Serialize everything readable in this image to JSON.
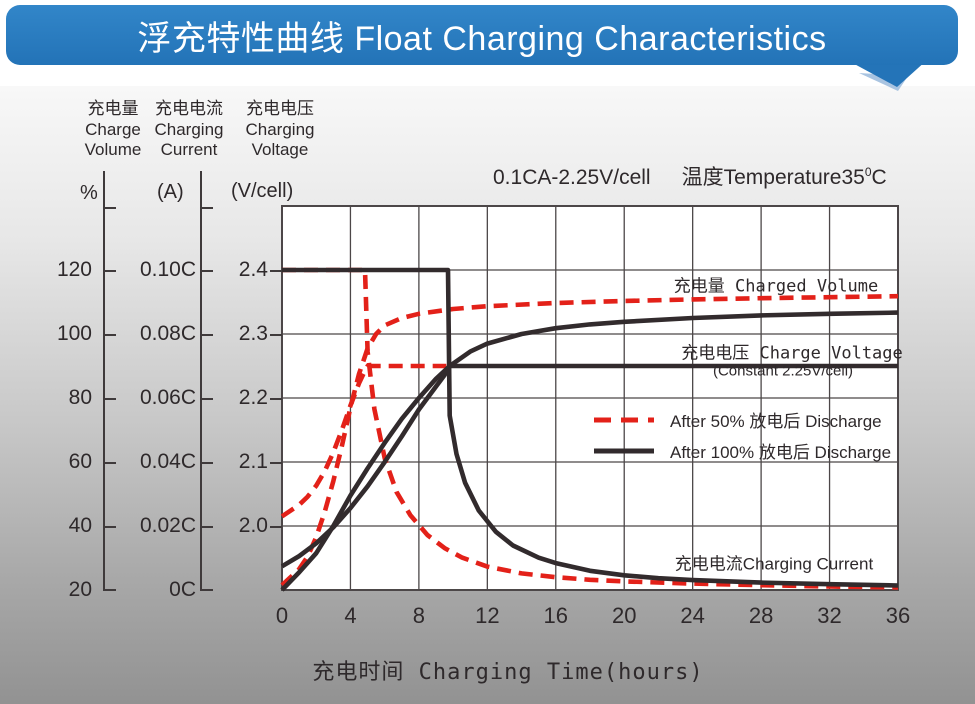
{
  "banner": {
    "title": "浮充特性曲线 Float Charging Characteristics",
    "bg": "#2577bd"
  },
  "colors": {
    "red": "#e32119",
    "black": "#322b2d",
    "grid": "#4c4748",
    "axis": "#3f3a3b"
  },
  "axis_headers": [
    {
      "zh": "充电量",
      "en_line1": "Charge",
      "en_line2": "Volume",
      "unit": "%"
    },
    {
      "zh": "充电电流",
      "en_line1": "Charging",
      "en_line2": "Current",
      "unit": "(A)"
    },
    {
      "zh": "充电电压",
      "en_line1": "Charging",
      "en_line2": "Voltage",
      "unit": "(V/cell)"
    }
  ],
  "condition": {
    "left": "0.1CA-2.25V/cell",
    "right": "温度Temperature35",
    "sup": "0",
    "unit": "C"
  },
  "chart_data": {
    "type": "line",
    "title": "浮充特性曲线 Float Charging Characteristics",
    "condition": "0.1CA-2.25V/cell 温度Temperature35°C",
    "xlabel": "充电时间 Charging Time(hours)",
    "x_ticks": [
      0,
      4,
      8,
      12,
      16,
      20,
      24,
      28,
      32,
      36
    ],
    "x_range": [
      0,
      36
    ],
    "grid": true,
    "axes": {
      "volume": {
        "name": "充电量 Charge Volume",
        "unit": "%",
        "ticks": [
          "120",
          "100",
          "80",
          "60",
          "40",
          "20"
        ],
        "range": [
          20,
          126
        ]
      },
      "current": {
        "name": "充电电流 Charging Current",
        "unit": "A",
        "ticks": [
          "0.10C",
          "0.08C",
          "0.06C",
          "0.04C",
          "0.02C",
          "0C"
        ],
        "range": [
          0,
          0.1188
        ]
      },
      "voltage": {
        "name": "充电电压 Charging Voltage",
        "unit": "V/cell",
        "ticks": [
          "2.4",
          "2.3",
          "2.2",
          "2.1",
          "2.0"
        ],
        "range": [
          1.9,
          2.5
        ]
      }
    },
    "annotations": {
      "charged_volume": "充电量 Charged Volume",
      "charge_voltage": "充电电压 Charge Voltage",
      "constant": "(Constant 2.25V/cell)",
      "charging_current": "充电电流Charging Current"
    },
    "legend": [
      {
        "label": "After 50% 放电后 Discharge",
        "style": "dashed",
        "color": "#e32119"
      },
      {
        "label": "After 100% 放电后 Discharge",
        "style": "solid",
        "color": "#322b2d"
      }
    ],
    "series": [
      {
        "name": "charged-volume-50",
        "axis": "volume",
        "style": "dashed",
        "color": "#e32119",
        "points": [
          [
            0,
            21.5
          ],
          [
            1,
            26.5
          ],
          [
            1.5,
            30.5
          ],
          [
            2,
            36.5
          ],
          [
            2.5,
            44.5
          ],
          [
            3,
            54
          ],
          [
            3.5,
            65
          ],
          [
            4,
            77
          ],
          [
            4.5,
            87.5
          ],
          [
            5,
            95.5
          ],
          [
            5.5,
            100
          ],
          [
            6,
            102.7
          ],
          [
            7,
            105
          ],
          [
            8,
            106.3
          ],
          [
            10,
            107.8
          ],
          [
            12,
            108.7
          ],
          [
            16,
            109.7
          ],
          [
            20,
            110.3
          ],
          [
            24,
            110.8
          ],
          [
            28,
            111.2
          ],
          [
            32,
            111.5
          ],
          [
            36,
            111.8
          ]
        ]
      },
      {
        "name": "charge-voltage-50",
        "axis": "voltage",
        "style": "dashed",
        "color": "#e32119",
        "points": [
          [
            0,
            2.015
          ],
          [
            1,
            2.033
          ],
          [
            1.5,
            2.046
          ],
          [
            2,
            2.063
          ],
          [
            2.5,
            2.086
          ],
          [
            3,
            2.115
          ],
          [
            3.5,
            2.15
          ],
          [
            4,
            2.188
          ],
          [
            4.5,
            2.223
          ],
          [
            4.8,
            2.24
          ],
          [
            5,
            2.25
          ],
          [
            9.6,
            2.25
          ]
        ]
      },
      {
        "name": "charging-current-50",
        "axis": "current",
        "style": "dashed",
        "color": "#e32119",
        "points": [
          [
            0,
            0.1
          ],
          [
            4.85,
            0.1
          ],
          [
            5,
            0.0745
          ],
          [
            5.4,
            0.0565
          ],
          [
            6,
            0.0412
          ],
          [
            6.7,
            0.0306
          ],
          [
            7.5,
            0.0234
          ],
          [
            8.5,
            0.0172
          ],
          [
            9.5,
            0.0131
          ],
          [
            10.5,
            0.0102
          ],
          [
            12,
            0.0073
          ],
          [
            14,
            0.0052
          ],
          [
            16,
            0.004
          ],
          [
            18,
            0.0032
          ],
          [
            20,
            0.0027
          ],
          [
            24,
            0.002
          ],
          [
            28,
            0.0015
          ],
          [
            32,
            0.0011
          ],
          [
            36,
            0.0008
          ]
        ]
      },
      {
        "name": "charged-volume-100",
        "axis": "volume",
        "style": "solid",
        "color": "#322b2d",
        "points": [
          [
            0,
            20
          ],
          [
            1,
            25.5
          ],
          [
            2,
            31.5
          ],
          [
            3,
            40
          ],
          [
            4,
            49.5
          ],
          [
            5,
            58
          ],
          [
            6,
            66
          ],
          [
            7,
            73.5
          ],
          [
            8,
            80
          ],
          [
            9,
            86
          ],
          [
            9.8,
            90
          ],
          [
            11,
            94.5
          ],
          [
            12,
            97
          ],
          [
            14,
            100
          ],
          [
            16,
            101.8
          ],
          [
            18,
            103
          ],
          [
            20,
            103.8
          ],
          [
            24,
            105
          ],
          [
            28,
            105.8
          ],
          [
            32,
            106.3
          ],
          [
            36,
            106.7
          ]
        ]
      },
      {
        "name": "charge-voltage-100",
        "axis": "voltage",
        "style": "solid",
        "color": "#322b2d",
        "points": [
          [
            0,
            1.937
          ],
          [
            1,
            1.953
          ],
          [
            2,
            1.973
          ],
          [
            3,
            1.998
          ],
          [
            4,
            2.028
          ],
          [
            5,
            2.062
          ],
          [
            6,
            2.1
          ],
          [
            7,
            2.14
          ],
          [
            8,
            2.182
          ],
          [
            9,
            2.218
          ],
          [
            9.5,
            2.236
          ],
          [
            9.8,
            2.25
          ],
          [
            36,
            2.25
          ]
        ]
      },
      {
        "name": "charging-current-100",
        "axis": "current",
        "style": "solid",
        "color": "#322b2d",
        "points": [
          [
            0,
            0.1
          ],
          [
            9.7,
            0.1
          ],
          [
            9.8,
            0.0545
          ],
          [
            10.2,
            0.0425
          ],
          [
            10.7,
            0.0335
          ],
          [
            11.5,
            0.0248
          ],
          [
            12.5,
            0.0182
          ],
          [
            13.5,
            0.0139
          ],
          [
            15,
            0.0101
          ],
          [
            16,
            0.0084
          ],
          [
            18,
            0.006
          ],
          [
            20,
            0.0046
          ],
          [
            22,
            0.0037
          ],
          [
            24,
            0.0031
          ],
          [
            28,
            0.0023
          ],
          [
            32,
            0.0018
          ],
          [
            36,
            0.0014
          ]
        ]
      }
    ]
  }
}
